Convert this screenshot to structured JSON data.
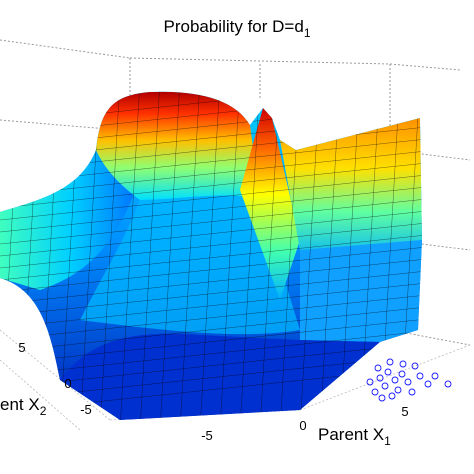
{
  "chart_data": {
    "type": "surface3d",
    "title_main": "Probability for D=d",
    "title_sub": "1",
    "xlabel_main": "Parent X",
    "xlabel_sub": "1",
    "ylabel_main": "ent X",
    "ylabel_sub": "2",
    "x_ticks": [
      "-5",
      "0",
      "5"
    ],
    "y_ticks": [
      "-5",
      "0",
      "5"
    ],
    "colormap": "jet",
    "grid": true
  }
}
